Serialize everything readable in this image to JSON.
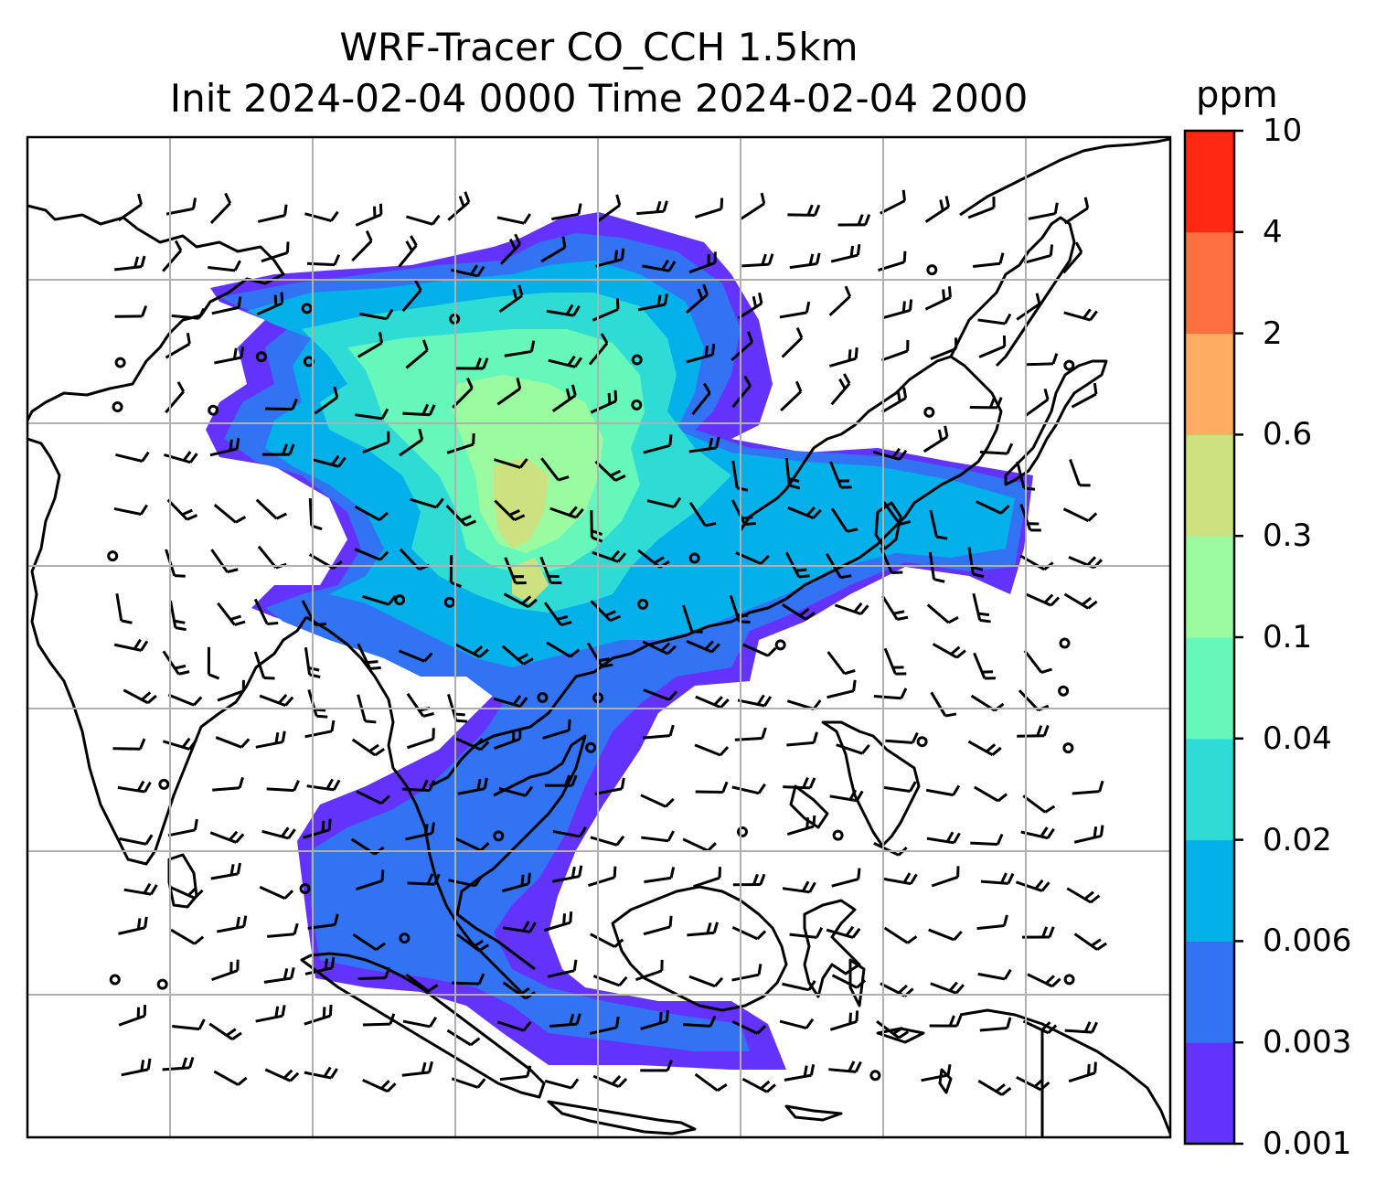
{
  "title": {
    "line1": "WRF-Tracer CO_CCH 1.5km",
    "line2": "Init 2024-02-04 0000 Time 2024-02-04 2000"
  },
  "colorbar": {
    "unit": "ppm",
    "ticks": [
      "0.001",
      "0.003",
      "0.006",
      "0.02",
      "0.04",
      "0.1",
      "0.3",
      "0.6",
      "2",
      "4",
      "10"
    ],
    "colors": [
      "#6433fb",
      "#3273f4",
      "#04b0ea",
      "#2fdcd5",
      "#66f7bb",
      "#9afba1",
      "#cde181",
      "#ffad62",
      "#ff7040",
      "#ff2812"
    ]
  },
  "map": {
    "gridlines": "on",
    "field": "CO tracer concentration at 1.5 km",
    "overlay": "wind barbs"
  }
}
